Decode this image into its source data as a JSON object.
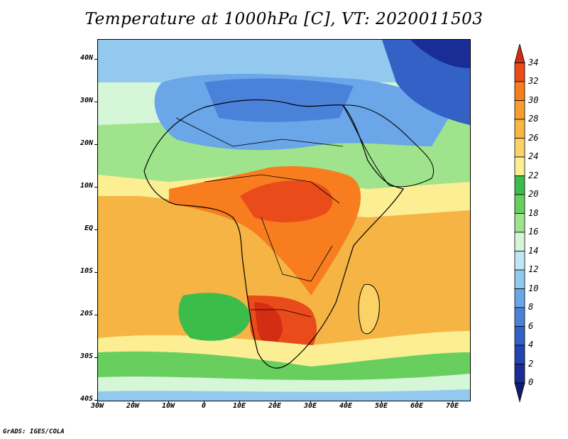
{
  "title": "Temperature at 1000hPa [C], VT: 2020011503",
  "credit": "GrADS: IGES/COLA",
  "map": {
    "lon_range": [
      -30,
      75
    ],
    "lat_range": [
      -40,
      45
    ],
    "lat_labels": [
      "40N",
      "30N",
      "20N",
      "10N",
      "EQ",
      "10S",
      "20S",
      "30S",
      "40S"
    ],
    "lon_labels": [
      "30W",
      "20W",
      "10W",
      "0",
      "10E",
      "20E",
      "30E",
      "40E",
      "50E",
      "60E",
      "70E"
    ]
  },
  "colorbar": {
    "labels": [
      "34",
      "32",
      "30",
      "28",
      "26",
      "24",
      "22",
      "20",
      "18",
      "16",
      "14",
      "12",
      "10",
      "8",
      "6",
      "4",
      "2",
      "0"
    ],
    "colors": [
      "#d32d13",
      "#ea4b1a",
      "#f77d1f",
      "#f59d2f",
      "#f8b744",
      "#fbd267",
      "#fbee93",
      "#3bbc4b",
      "#68cf5e",
      "#9fe38c",
      "#d6f6d8",
      "#c0e6f6",
      "#93c8ef",
      "#6aa6e8",
      "#4b82d9",
      "#3461c5",
      "#2444b0",
      "#1a2d96",
      "#0f1c6f"
    ]
  }
}
